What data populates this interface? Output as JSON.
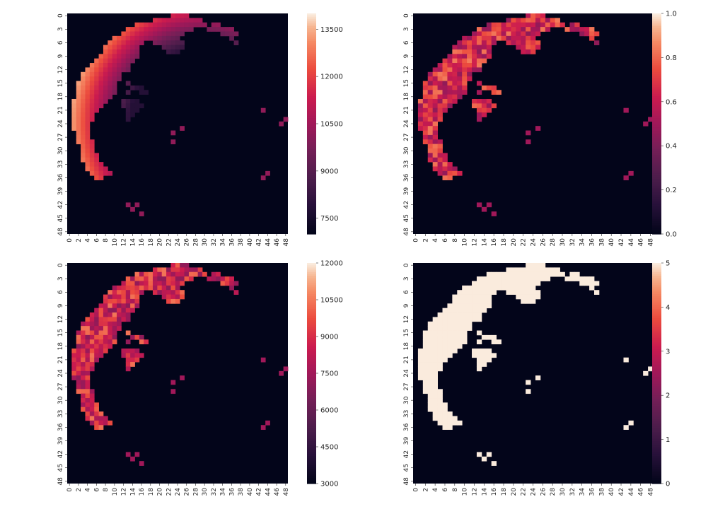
{
  "chart_data": [
    {
      "type": "heatmap",
      "title": "",
      "xlabel": "",
      "ylabel": "",
      "rows": 49,
      "cols": 49,
      "x_tick_labels": [
        "0",
        "2",
        "4",
        "6",
        "8",
        "10",
        "12",
        "14",
        "16",
        "18",
        "20",
        "22",
        "24",
        "26",
        "28",
        "30",
        "32",
        "34",
        "36",
        "38",
        "40",
        "42",
        "44",
        "46",
        "48"
      ],
      "y_tick_labels": [
        "0",
        "3",
        "6",
        "9",
        "12",
        "15",
        "18",
        "21",
        "24",
        "27",
        "30",
        "33",
        "36",
        "39",
        "42",
        "45",
        "48"
      ],
      "vmin": 7000,
      "vmax": 14000,
      "colorbar_ticks": [
        "7500",
        "9000",
        "10500",
        "12000",
        "13500"
      ],
      "colorbar_tick_values": [
        7500,
        9000,
        10500,
        12000,
        13500
      ],
      "background_value": 7000,
      "colormap": "rocket",
      "pattern": "smooth",
      "value_low": 7800,
      "value_high": 13600,
      "value_isolated": 10200
    },
    {
      "type": "heatmap",
      "title": "",
      "xlabel": "",
      "ylabel": "",
      "rows": 49,
      "cols": 49,
      "x_tick_labels": [
        "0",
        "2",
        "4",
        "6",
        "8",
        "10",
        "12",
        "14",
        "16",
        "18",
        "20",
        "22",
        "24",
        "26",
        "28",
        "30",
        "32",
        "34",
        "36",
        "38",
        "40",
        "42",
        "44",
        "46",
        "48"
      ],
      "y_tick_labels": [
        "0",
        "3",
        "6",
        "9",
        "12",
        "15",
        "18",
        "21",
        "24",
        "27",
        "30",
        "33",
        "36",
        "39",
        "42",
        "45",
        "48"
      ],
      "vmin": 0.0,
      "vmax": 1.0,
      "colorbar_ticks": [
        "0.0",
        "0.2",
        "0.4",
        "0.6",
        "0.8",
        "1.0"
      ],
      "colorbar_tick_values": [
        0,
        0.2,
        0.4,
        0.6,
        0.8,
        1.0
      ],
      "background_value": 0.0,
      "colormap": "rocket",
      "pattern": "noisy",
      "value_low": 0.45,
      "value_high": 0.85,
      "value_isolated": 0.5
    },
    {
      "type": "heatmap",
      "title": "",
      "xlabel": "",
      "ylabel": "",
      "rows": 49,
      "cols": 49,
      "x_tick_labels": [
        "0",
        "2",
        "4",
        "6",
        "8",
        "10",
        "12",
        "14",
        "16",
        "18",
        "20",
        "22",
        "24",
        "26",
        "28",
        "30",
        "32",
        "34",
        "36",
        "38",
        "40",
        "42",
        "44",
        "46",
        "48"
      ],
      "y_tick_labels": [
        "0",
        "3",
        "6",
        "9",
        "12",
        "15",
        "18",
        "21",
        "24",
        "27",
        "30",
        "33",
        "36",
        "39",
        "42",
        "45",
        "48"
      ],
      "vmin": 3000,
      "vmax": 12000,
      "colorbar_ticks": [
        "3000",
        "4500",
        "6000",
        "7500",
        "9000",
        "10500",
        "12000"
      ],
      "colorbar_tick_values": [
        3000,
        4500,
        6000,
        7500,
        9000,
        10500,
        12000
      ],
      "background_value": 3000,
      "colormap": "rocket",
      "pattern": "noisy",
      "value_low": 7000,
      "value_high": 10500,
      "value_isolated": 7500
    },
    {
      "type": "heatmap",
      "title": "",
      "xlabel": "",
      "ylabel": "",
      "rows": 49,
      "cols": 49,
      "x_tick_labels": [
        "0",
        "2",
        "4",
        "6",
        "8",
        "10",
        "12",
        "14",
        "16",
        "18",
        "20",
        "22",
        "24",
        "26",
        "28",
        "30",
        "32",
        "34",
        "36",
        "38",
        "40",
        "42",
        "44",
        "46",
        "48"
      ],
      "y_tick_labels": [
        "0",
        "3",
        "6",
        "9",
        "12",
        "15",
        "18",
        "21",
        "24",
        "27",
        "30",
        "33",
        "36",
        "39",
        "42",
        "45",
        "48"
      ],
      "vmin": 0,
      "vmax": 5,
      "colorbar_ticks": [
        "0",
        "1",
        "2",
        "3",
        "4",
        "5"
      ],
      "colorbar_tick_values": [
        0,
        1,
        2,
        3,
        4,
        5
      ],
      "background_value": 0,
      "colormap": "rocket",
      "pattern": "binary",
      "value_low": 5,
      "value_high": 5,
      "value_isolated": 5
    }
  ]
}
